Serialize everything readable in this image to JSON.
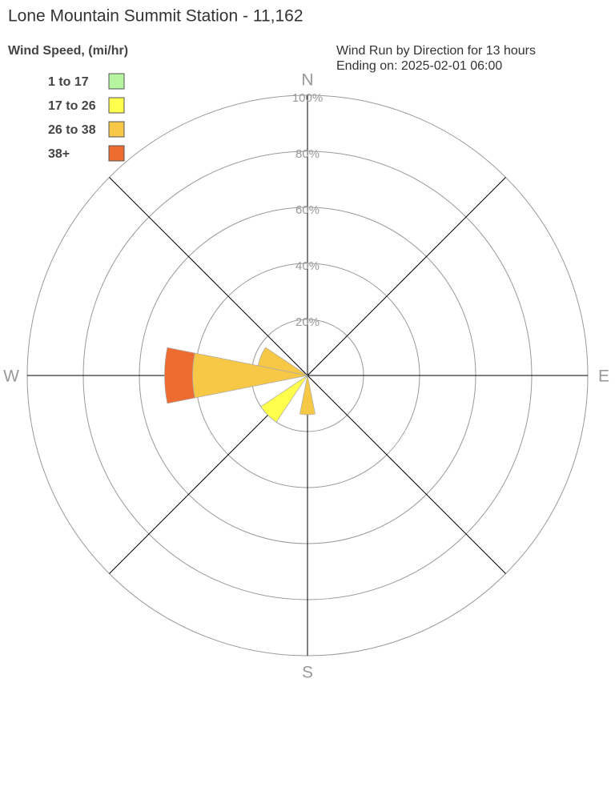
{
  "chart_data": {
    "type": "windrose",
    "title": "Lone Mountain Summit Station - 11,162",
    "legend_title": "Wind Speed, (mi/hr)",
    "subtitle": [
      "Wind Run by Direction for 13 hours",
      "Ending on: 2025-02-01 06:00"
    ],
    "compass_labels": [
      "N",
      "E",
      "S",
      "W"
    ],
    "directions": [
      0,
      22.5,
      45,
      67.5,
      90,
      112.5,
      135,
      157.5,
      180,
      202.5,
      225,
      247.5,
      270,
      292.5,
      315,
      337.5
    ],
    "rlim": [
      0,
      100
    ],
    "rticks": [
      {
        "value": 20,
        "label": "20%"
      },
      {
        "value": 40,
        "label": "40%"
      },
      {
        "value": 60,
        "label": "60%"
      },
      {
        "value": 80,
        "label": "80%"
      },
      {
        "value": 100,
        "label": "100%"
      }
    ],
    "series": [
      {
        "name": "1 to 17",
        "color": "#b5f5a0",
        "values": [
          0,
          0,
          0,
          0,
          0,
          0,
          0,
          0,
          0,
          0,
          0,
          0,
          0,
          0,
          0,
          0
        ]
      },
      {
        "name": "17 to 26",
        "color": "#ffff4d",
        "values": [
          0,
          0,
          0,
          0,
          0,
          0,
          0,
          0,
          0,
          0,
          20,
          0,
          0,
          0,
          0,
          0
        ]
      },
      {
        "name": "26 to 38",
        "color": "#f7c846",
        "values": [
          0,
          0,
          0,
          0,
          0,
          0,
          0,
          0,
          14,
          0,
          0,
          0,
          41,
          18,
          0,
          0
        ]
      },
      {
        "name": "38+",
        "color": "#ee6c30",
        "values": [
          0,
          0,
          0,
          0,
          0,
          0,
          0,
          0,
          0,
          0,
          0,
          0,
          10,
          0,
          0,
          0
        ]
      }
    ]
  }
}
